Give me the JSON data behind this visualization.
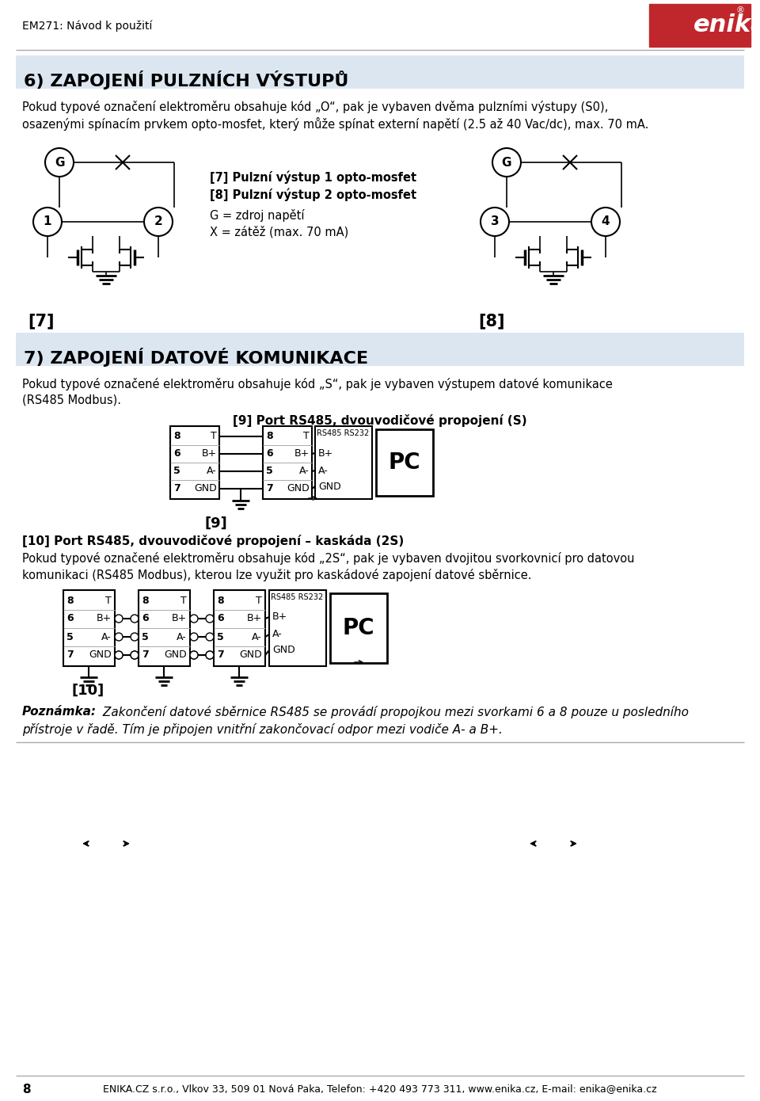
{
  "page_title": "EM271: Návod k použití",
  "section6_title": "6) ZAPOJENÍ PULZNÍCH VÝSTUPŮ",
  "section6_line1": "Pokud typové označení elektroměru obsahuje kód „O“, pak je vybaven dvěma pulzními výstupy (S0),",
  "section6_line2": "osazenými spínacím prvkem opto-mosfet, který může spínat externí napětí (2.5 až 40 Vac/dc), max. 70 mA.",
  "diag_label1a": "[7] Pulzní výstup 1 opto-mosfet",
  "diag_label1b": "[8] Pulzní výstup 2 opto-mosfet",
  "legend_G": "G = zdroj napětí",
  "legend_X": "X = zátěž (max. 70 mA)",
  "label7": "[7]",
  "label8": "[8]",
  "section7_title": "7) ZAPOJENÍ DATOVÉ KOMUNIKACE",
  "section7_line1": "Pokud typové označené elektroměru obsahuje kód „S“, pak je vybaven výstupem datové komunikace",
  "section7_line2": "(RS485 Modbus).",
  "section9_title": "[9] Port RS485, dvouvodičové propojení (S)",
  "label9": "[9]",
  "section10_title": "[10] Port RS485, dvouvodičové propojení – kaskáda (2S)",
  "section10_line1": "Pokud typové označené elektroměru obsahuje kód „2S“, pak je vybaven dvojitou svorkovnicí pro datovou",
  "section10_line2": "komunikaci (RS485 Modbus), kterou lze využit pro kaskádové zapojení datové sběrnice.",
  "label10": "[10]",
  "pozn_bold": "Poznámka:",
  "pozn_italic1": " Zakončení datové sběrnice RS485 se provádí propojkou mezi svorkami 6 a 8 pouze u posledního",
  "pozn_italic2": "přístroje v řadě. Tím je připojen vnitřní zakončovací odpor mezi vodiče A- a B+.",
  "footer_num": "8",
  "footer_text": "ENIKA.CZ s.r.o., Vlkov 33, 509 01 Nová Paka, Telefon: +420 493 773 311, www.enika.cz, E-mail: enika@enika.cz",
  "bg_blue": "#dce6f1",
  "logo_red": "#c0272d"
}
